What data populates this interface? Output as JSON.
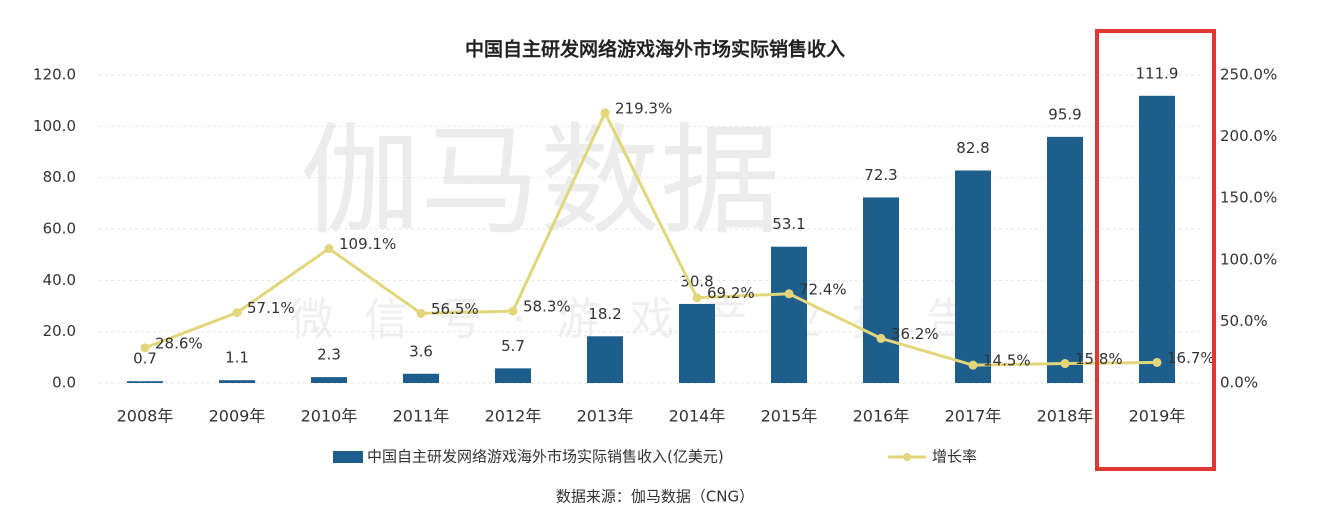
{
  "chart_data": {
    "type": "bar",
    "title": "中国自主研发网络游戏海外市场实际销售收入",
    "categories": [
      "2008年",
      "2009年",
      "2010年",
      "2011年",
      "2012年",
      "2013年",
      "2014年",
      "2015年",
      "2016年",
      "2017年",
      "2018年",
      "2019年"
    ],
    "series": [
      {
        "name": "中国自主研发网络游戏海外市场实际销售收入(亿美元)",
        "color": "#1d5e8c",
        "values": [
          0.7,
          1.1,
          2.3,
          3.6,
          5.7,
          18.2,
          30.8,
          53.1,
          72.3,
          82.8,
          95.9,
          111.9
        ]
      },
      {
        "name": "增长率",
        "type": "line",
        "axis": "y2",
        "color": "#e3d67a",
        "values": [
          28.6,
          57.1,
          109.1,
          56.5,
          58.3,
          219.3,
          69.2,
          72.4,
          36.2,
          14.5,
          15.8,
          16.7
        ],
        "value_labels": [
          "28.6%",
          "57.1%",
          "109.1%",
          "56.5%",
          "58.3%",
          "219.3%",
          "69.2%",
          "72.4%",
          "36.2%",
          "14.5%",
          "15.8%",
          "16.7%"
        ]
      }
    ],
    "ylim": [
      0,
      120
    ],
    "yticks": [
      {
        "value": 0,
        "label": "0.0"
      },
      {
        "value": 20,
        "label": "20.0"
      },
      {
        "value": 40,
        "label": "40.0"
      },
      {
        "value": 60,
        "label": "60.0"
      },
      {
        "value": 80,
        "label": "80.0"
      },
      {
        "value": 100,
        "label": "100.0"
      },
      {
        "value": 120,
        "label": "120.0"
      }
    ],
    "y2lim": [
      0,
      250
    ],
    "y2ticks": [
      {
        "value": 0,
        "label": "0.0%"
      },
      {
        "value": 50,
        "label": "50.0%"
      },
      {
        "value": 100,
        "label": "100.0%"
      },
      {
        "value": 150,
        "label": "150.0%"
      },
      {
        "value": 200,
        "label": "200.0%"
      },
      {
        "value": 250,
        "label": "250.0%"
      }
    ],
    "grid": true,
    "legend": "bottom",
    "source": "数据来源：伽马数据（CNG）",
    "watermark": [
      "伽马数据",
      "微信号·游戏产业报告"
    ]
  }
}
